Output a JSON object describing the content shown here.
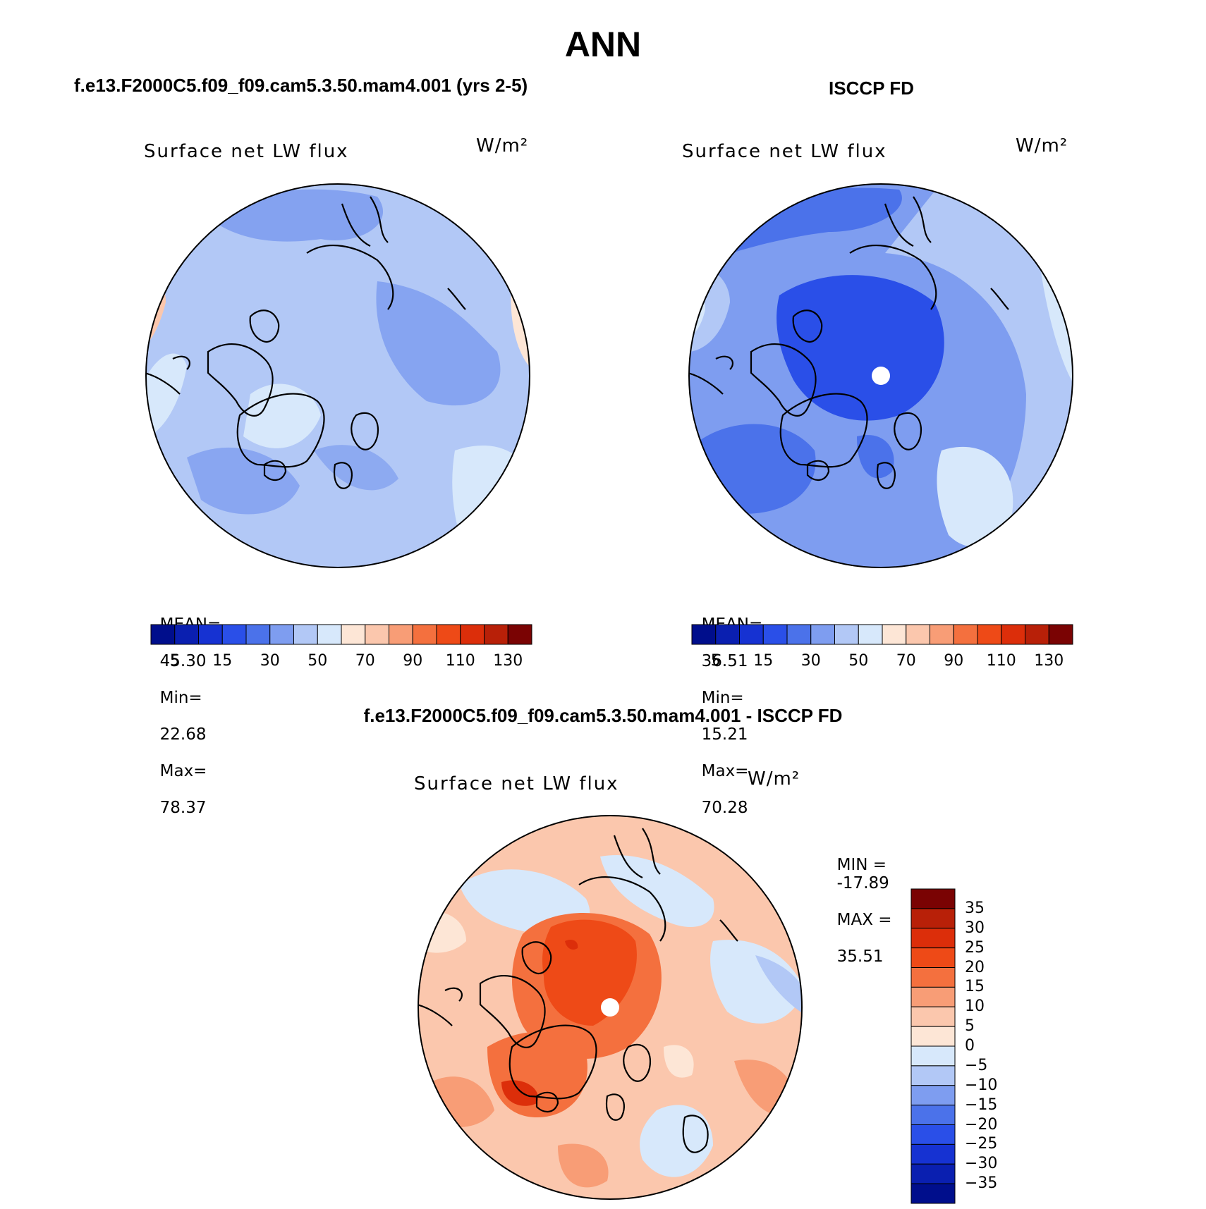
{
  "season": "ANN",
  "panels": {
    "model": {
      "case_title": "f.e13.F2000C5.f09_f09.cam5.3.50.mam4.001 (yrs 2-5)",
      "plot_title": "Surface net LW flux",
      "units": "W/m²",
      "stats": {
        "mean_label": "MEAN=",
        "mean": "45.30",
        "min_label": "Min=",
        "min": "22.68",
        "max_label": "Max=",
        "max": "78.37"
      }
    },
    "obs": {
      "case_title": "ISCCP FD",
      "plot_title": "Surface net LW flux",
      "units": "W/m²",
      "stats": {
        "mean_label": "MEAN=",
        "mean": "36.51",
        "min_label": "Min=",
        "min": "15.21",
        "max_label": "Max=",
        "max": "70.28"
      }
    },
    "diff": {
      "case_title": "f.e13.F2000C5.f09_f09.cam5.3.50.mam4.001 - ISCCP FD",
      "plot_title": "Surface net LW flux",
      "units": "W/m²",
      "stats": {
        "min_label": "MIN =",
        "min": "-17.89",
        "max_label": "MAX =",
        "max": "35.51"
      }
    }
  },
  "colors": {
    "field_scale": [
      "#000e8c",
      "#0a1fb0",
      "#1632d2",
      "#2a4fe8",
      "#4b72ea",
      "#7e9df0",
      "#b2c8f6",
      "#d7e8fb",
      "#fde6d6",
      "#fbc7ad",
      "#f89d76",
      "#f4703e",
      "#ee4a17",
      "#dc2e0a",
      "#b82008",
      "#7a0303"
    ],
    "diff_scale": [
      "#7a0303",
      "#b82008",
      "#dc2e0a",
      "#ee4a17",
      "#f4703e",
      "#f89d76",
      "#fbc7ad",
      "#fde6d6",
      "#d7e8fb",
      "#b2c8f6",
      "#7e9df0",
      "#4b72ea",
      "#2a4fe8",
      "#1632d2",
      "#0a1fb0",
      "#000e8c"
    ]
  },
  "chart_data": [
    {
      "type": "heatmap",
      "projection": "north polar stereographic",
      "title": "Surface net LW flux",
      "case": "f.e13.F2000C5.f09_f09.cam5.3.50.mam4.001 (yrs 2-5)",
      "units": "W/m²",
      "mean": 45.3,
      "min": 22.68,
      "max": 78.37,
      "levels": [
        5,
        10,
        15,
        20,
        30,
        40,
        50,
        60,
        70,
        80,
        90,
        100,
        110,
        120,
        130
      ],
      "tick_labels": [
        "5",
        "15",
        "30",
        "50",
        "70",
        "90",
        "110",
        "130"
      ]
    },
    {
      "type": "heatmap",
      "projection": "north polar stereographic",
      "title": "Surface net LW flux",
      "case": "ISCCP FD",
      "units": "W/m²",
      "mean": 36.51,
      "min": 15.21,
      "max": 70.28,
      "levels": [
        5,
        10,
        15,
        20,
        30,
        40,
        50,
        60,
        70,
        80,
        90,
        100,
        110,
        120,
        130
      ],
      "tick_labels": [
        "5",
        "15",
        "30",
        "50",
        "70",
        "90",
        "110",
        "130"
      ]
    },
    {
      "type": "heatmap",
      "projection": "north polar stereographic",
      "title": "Surface net LW flux",
      "case": "f.e13.F2000C5.f09_f09.cam5.3.50.mam4.001 - ISCCP FD",
      "units": "W/m²",
      "min": -17.89,
      "max": 35.51,
      "levels": [
        35,
        30,
        25,
        20,
        15,
        10,
        5,
        0,
        -5,
        -10,
        -15,
        -20,
        -25,
        -30,
        -35
      ],
      "tick_labels": [
        "35",
        "30",
        "25",
        "20",
        "15",
        "10",
        "5",
        "0",
        "−5",
        "−10",
        "−15",
        "−20",
        "−25",
        "−30",
        "−35"
      ]
    }
  ]
}
